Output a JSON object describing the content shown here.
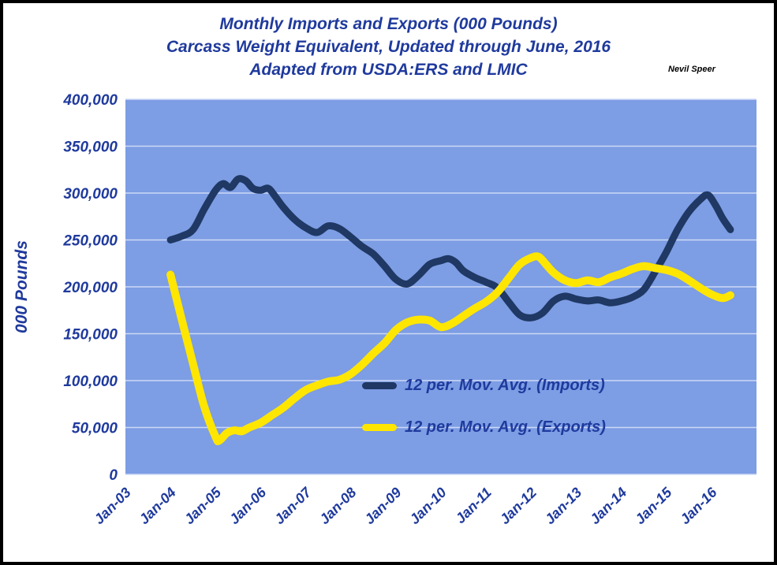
{
  "page": {
    "title_lines": [
      "Monthly Imports and Exports (000 Pounds)",
      "Carcass Weight Equivalent, Updated through June, 2016",
      "Adapted from USDA:ERS and LMIC"
    ],
    "attribution": "Nevil Speer"
  },
  "colors": {
    "text_navy": "#1F3A9D",
    "imports_line": "#1F3864",
    "exports_line": "#FFE600",
    "plot_bg": "#7D9DE4",
    "gridline": "#CDD9F6",
    "page_border": "#000000",
    "attribution_text": "#000000"
  },
  "chart_data": {
    "type": "line",
    "title": "Monthly Imports and Exports (000 Pounds) Carcass Weight Equivalent, Updated through June, 2016 Adapted from USDA:ERS and LMIC",
    "xlabel": "",
    "ylabel": "000 Pounds",
    "xlim": [
      2003,
      2017
    ],
    "ylim": [
      0,
      400000
    ],
    "grid": "horizontal",
    "legend_position": "inside-bottom-center",
    "x_ticks": [
      {
        "x": 2003,
        "label": "Jan-03"
      },
      {
        "x": 2004,
        "label": "Jan-04"
      },
      {
        "x": 2005,
        "label": "Jan-05"
      },
      {
        "x": 2006,
        "label": "Jan-06"
      },
      {
        "x": 2007,
        "label": "Jan-07"
      },
      {
        "x": 2008,
        "label": "Jan-08"
      },
      {
        "x": 2009,
        "label": "Jan-09"
      },
      {
        "x": 2010,
        "label": "Jan-10"
      },
      {
        "x": 2011,
        "label": "Jan-11"
      },
      {
        "x": 2012,
        "label": "Jan-12"
      },
      {
        "x": 2013,
        "label": "Jan-13"
      },
      {
        "x": 2014,
        "label": "Jan-14"
      },
      {
        "x": 2015,
        "label": "Jan-15"
      },
      {
        "x": 2016,
        "label": "Jan-16"
      }
    ],
    "y_ticks": [
      {
        "value": 0,
        "label": "0"
      },
      {
        "value": 50000,
        "label": "50,000"
      },
      {
        "value": 100000,
        "label": "100,000"
      },
      {
        "value": 150000,
        "label": "150,000"
      },
      {
        "value": 200000,
        "label": "200,000"
      },
      {
        "value": 250000,
        "label": "250,000"
      },
      {
        "value": 300000,
        "label": "300,000"
      },
      {
        "value": 350000,
        "label": "350,000"
      },
      {
        "value": 400000,
        "label": "400,000"
      }
    ],
    "series": [
      {
        "name": "12 per. Mov. Avg. (Imports)",
        "color_key": "imports_line",
        "stroke_width": 9,
        "points": [
          [
            2004.0,
            250000
          ],
          [
            2004.25,
            254000
          ],
          [
            2004.5,
            261000
          ],
          [
            2004.75,
            283000
          ],
          [
            2005.0,
            303000
          ],
          [
            2005.17,
            310000
          ],
          [
            2005.33,
            306000
          ],
          [
            2005.5,
            315000
          ],
          [
            2005.67,
            313000
          ],
          [
            2005.83,
            305000
          ],
          [
            2006.0,
            303000
          ],
          [
            2006.17,
            305000
          ],
          [
            2006.33,
            296000
          ],
          [
            2006.5,
            285000
          ],
          [
            2006.75,
            272000
          ],
          [
            2007.0,
            263000
          ],
          [
            2007.25,
            258000
          ],
          [
            2007.5,
            265000
          ],
          [
            2007.75,
            262000
          ],
          [
            2008.0,
            253000
          ],
          [
            2008.25,
            243000
          ],
          [
            2008.5,
            235000
          ],
          [
            2008.75,
            222000
          ],
          [
            2009.0,
            208000
          ],
          [
            2009.25,
            203000
          ],
          [
            2009.5,
            212000
          ],
          [
            2009.75,
            224000
          ],
          [
            2010.0,
            228000
          ],
          [
            2010.17,
            230000
          ],
          [
            2010.33,
            226000
          ],
          [
            2010.5,
            217000
          ],
          [
            2010.75,
            210000
          ],
          [
            2011.0,
            205000
          ],
          [
            2011.25,
            199000
          ],
          [
            2011.5,
            184000
          ],
          [
            2011.75,
            170000
          ],
          [
            2012.0,
            167000
          ],
          [
            2012.25,
            172000
          ],
          [
            2012.5,
            185000
          ],
          [
            2012.75,
            190000
          ],
          [
            2013.0,
            187000
          ],
          [
            2013.25,
            185000
          ],
          [
            2013.5,
            186000
          ],
          [
            2013.75,
            183000
          ],
          [
            2014.0,
            185000
          ],
          [
            2014.25,
            189000
          ],
          [
            2014.5,
            197000
          ],
          [
            2014.75,
            216000
          ],
          [
            2015.0,
            237000
          ],
          [
            2015.25,
            261000
          ],
          [
            2015.5,
            280000
          ],
          [
            2015.75,
            293000
          ],
          [
            2015.92,
            298000
          ],
          [
            2016.08,
            288000
          ],
          [
            2016.25,
            273000
          ],
          [
            2016.42,
            261000
          ]
        ]
      },
      {
        "name": "12 per. Mov. Avg. (Exports)",
        "color_key": "exports_line",
        "stroke_width": 10,
        "points": [
          [
            2004.0,
            213000
          ],
          [
            2004.25,
            165000
          ],
          [
            2004.5,
            118000
          ],
          [
            2004.75,
            72000
          ],
          [
            2005.0,
            40000
          ],
          [
            2005.08,
            36000
          ],
          [
            2005.25,
            44000
          ],
          [
            2005.42,
            47000
          ],
          [
            2005.58,
            46000
          ],
          [
            2005.75,
            50000
          ],
          [
            2006.0,
            55000
          ],
          [
            2006.25,
            63000
          ],
          [
            2006.5,
            71000
          ],
          [
            2006.75,
            81000
          ],
          [
            2007.0,
            90000
          ],
          [
            2007.25,
            95000
          ],
          [
            2007.5,
            99000
          ],
          [
            2007.75,
            101000
          ],
          [
            2008.0,
            107000
          ],
          [
            2008.25,
            117000
          ],
          [
            2008.5,
            129000
          ],
          [
            2008.75,
            140000
          ],
          [
            2009.0,
            154000
          ],
          [
            2009.25,
            162000
          ],
          [
            2009.5,
            165000
          ],
          [
            2009.75,
            164000
          ],
          [
            2010.0,
            157000
          ],
          [
            2010.25,
            161000
          ],
          [
            2010.5,
            169000
          ],
          [
            2010.75,
            177000
          ],
          [
            2011.0,
            184000
          ],
          [
            2011.25,
            194000
          ],
          [
            2011.5,
            209000
          ],
          [
            2011.75,
            224000
          ],
          [
            2012.0,
            231000
          ],
          [
            2012.17,
            232000
          ],
          [
            2012.33,
            224000
          ],
          [
            2012.5,
            215000
          ],
          [
            2012.75,
            207000
          ],
          [
            2013.0,
            204000
          ],
          [
            2013.25,
            207000
          ],
          [
            2013.5,
            205000
          ],
          [
            2013.75,
            210000
          ],
          [
            2014.0,
            214000
          ],
          [
            2014.25,
            219000
          ],
          [
            2014.5,
            222000
          ],
          [
            2014.75,
            220000
          ],
          [
            2015.0,
            218000
          ],
          [
            2015.25,
            214000
          ],
          [
            2015.5,
            207000
          ],
          [
            2015.75,
            199000
          ],
          [
            2016.0,
            192000
          ],
          [
            2016.25,
            188000
          ],
          [
            2016.42,
            191000
          ]
        ]
      }
    ]
  }
}
